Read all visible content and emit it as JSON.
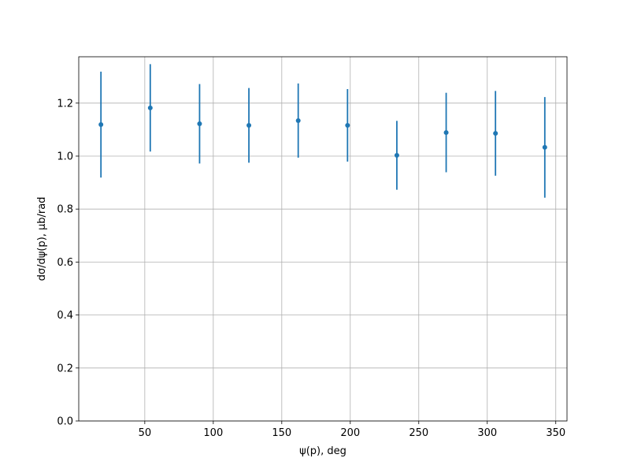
{
  "chart_data": {
    "type": "errorbar",
    "x_label": "ψ(p), deg",
    "y_label": "dσ/dψ(p), μb/rad",
    "x": [
      18,
      54,
      90,
      126,
      162,
      198,
      234,
      270,
      306,
      342
    ],
    "series": [
      {
        "color": "#1f77b4",
        "values": [
          1.119,
          1.182,
          1.122,
          1.116,
          1.134,
          1.116,
          1.003,
          1.089,
          1.086,
          1.033
        ],
        "errors": [
          0.2,
          0.165,
          0.15,
          0.141,
          0.14,
          0.137,
          0.13,
          0.15,
          0.16,
          0.19
        ]
      }
    ],
    "xlim": [
      1.8,
      358.2
    ],
    "ylim": [
      0,
      1.375
    ],
    "xticks": [
      50,
      100,
      150,
      200,
      250,
      300,
      350
    ],
    "yticks": [
      {
        "value": 0,
        "label": "0.0"
      },
      {
        "value": 0.2,
        "label": "0.2"
      },
      {
        "value": 0.4,
        "label": "0.4"
      },
      {
        "value": 0.6,
        "label": "0.6"
      },
      {
        "value": 0.8,
        "label": "0.8"
      },
      {
        "value": 1.0,
        "label": "1.0"
      },
      {
        "value": 1.2,
        "label": "1.2"
      }
    ],
    "grid": true
  }
}
